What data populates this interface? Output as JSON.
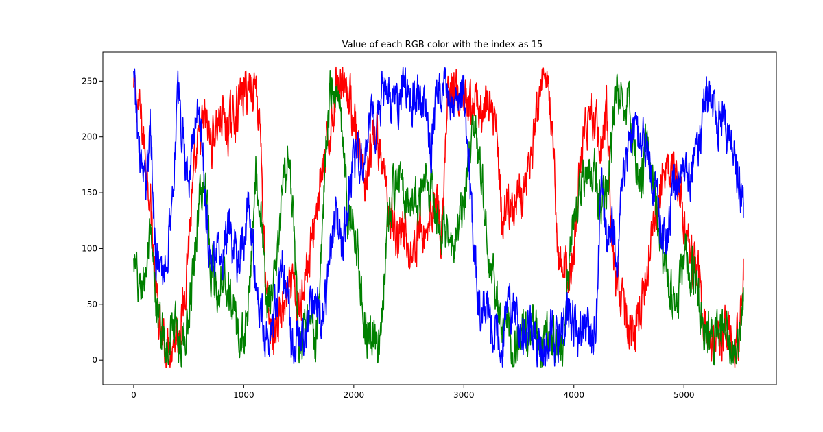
{
  "chart_data": {
    "type": "line",
    "title": "Value of each RGB color with the index as 15",
    "xlabel": "",
    "ylabel": "",
    "xlim": [
      -280,
      5840
    ],
    "ylim": [
      -22,
      276
    ],
    "x_ticks": [
      0,
      1000,
      2000,
      3000,
      4000,
      5000
    ],
    "y_ticks": [
      0,
      50,
      100,
      150,
      200,
      250
    ],
    "grid": false,
    "n_points": 5548,
    "series": [
      {
        "name": "R",
        "color": "#ff0000",
        "x": [
          0,
          50,
          100,
          150,
          200,
          250,
          300,
          350,
          400,
          450,
          500,
          550,
          600,
          650,
          700,
          750,
          800,
          850,
          900,
          950,
          1000,
          1050,
          1100,
          1150,
          1200,
          1250,
          1300,
          1350,
          1400,
          1450,
          1500,
          1550,
          1600,
          1650,
          1700,
          1750,
          1800,
          1850,
          1900,
          1950,
          2000,
          2050,
          2100,
          2150,
          2200,
          2250,
          2300,
          2350,
          2400,
          2450,
          2500,
          2550,
          2600,
          2650,
          2700,
          2750,
          2800,
          2850,
          2900,
          2950,
          3000,
          3050,
          3100,
          3150,
          3200,
          3250,
          3300,
          3350,
          3400,
          3450,
          3500,
          3550,
          3600,
          3650,
          3700,
          3750,
          3800,
          3850,
          3900,
          3950,
          4000,
          4050,
          4100,
          4150,
          4200,
          4250,
          4300,
          4350,
          4400,
          4450,
          4500,
          4550,
          4600,
          4650,
          4700,
          4750,
          4800,
          4850,
          4900,
          4950,
          5000,
          5050,
          5100,
          5150,
          5200,
          5250,
          5300,
          5350,
          5400,
          5450,
          5500,
          5540
        ],
        "y": [
          240,
          225,
          190,
          150,
          60,
          15,
          10,
          20,
          25,
          45,
          110,
          160,
          200,
          215,
          195,
          210,
          220,
          205,
          215,
          230,
          240,
          245,
          250,
          215,
          60,
          20,
          30,
          45,
          55,
          65,
          40,
          80,
          90,
          130,
          160,
          180,
          220,
          245,
          260,
          240,
          220,
          175,
          155,
          180,
          205,
          175,
          150,
          125,
          110,
          120,
          95,
          100,
          120,
          110,
          135,
          150,
          110,
          230,
          245,
          235,
          225,
          220,
          230,
          225,
          225,
          220,
          215,
          120,
          140,
          135,
          150,
          160,
          175,
          205,
          230,
          255,
          215,
          95,
          85,
          75,
          95,
          170,
          205,
          220,
          215,
          190,
          225,
          95,
          70,
          50,
          30,
          25,
          45,
          60,
          120,
          130,
          170,
          165,
          175,
          160,
          125,
          95,
          85,
          70,
          15,
          10,
          20,
          25,
          30,
          15,
          20,
          80
        ]
      },
      {
        "name": "G",
        "color": "#008000",
        "x": [
          0,
          50,
          100,
          150,
          200,
          250,
          300,
          350,
          400,
          450,
          500,
          550,
          600,
          650,
          700,
          750,
          800,
          850,
          900,
          950,
          1000,
          1050,
          1100,
          1150,
          1200,
          1250,
          1300,
          1350,
          1400,
          1450,
          1500,
          1550,
          1600,
          1650,
          1700,
          1750,
          1800,
          1850,
          1900,
          1950,
          2000,
          2050,
          2100,
          2150,
          2200,
          2250,
          2300,
          2350,
          2400,
          2450,
          2500,
          2550,
          2600,
          2650,
          2700,
          2750,
          2800,
          2850,
          2900,
          2950,
          3000,
          3050,
          3100,
          3150,
          3200,
          3250,
          3300,
          3350,
          3400,
          3450,
          3500,
          3550,
          3600,
          3650,
          3700,
          3750,
          3800,
          3850,
          3900,
          3950,
          4000,
          4050,
          4100,
          4150,
          4200,
          4250,
          4300,
          4350,
          4400,
          4450,
          4500,
          4550,
          4600,
          4650,
          4700,
          4750,
          4800,
          4850,
          4900,
          4950,
          5000,
          5050,
          5100,
          5150,
          5200,
          5250,
          5300,
          5350,
          5400,
          5450,
          5500,
          5540
        ],
        "y": [
          85,
          60,
          75,
          105,
          50,
          25,
          15,
          30,
          20,
          15,
          40,
          95,
          145,
          165,
          90,
          60,
          85,
          70,
          50,
          25,
          20,
          55,
          175,
          140,
          60,
          50,
          80,
          150,
          185,
          120,
          10,
          20,
          30,
          15,
          80,
          200,
          250,
          240,
          210,
          120,
          130,
          80,
          30,
          20,
          15,
          30,
          110,
          145,
          165,
          155,
          150,
          145,
          140,
          165,
          155,
          120,
          105,
          120,
          95,
          110,
          140,
          180,
          205,
          175,
          115,
          80,
          55,
          20,
          35,
          10,
          20,
          25,
          15,
          25,
          10,
          15,
          25,
          10,
          15,
          75,
          130,
          150,
          165,
          170,
          175,
          120,
          155,
          200,
          250,
          240,
          225,
          200,
          150,
          195,
          175,
          140,
          90,
          75,
          60,
          55,
          100,
          85,
          80,
          40,
          20,
          30,
          15,
          25,
          20,
          10,
          15,
          55
        ]
      },
      {
        "name": "B",
        "color": "#0000ff",
        "x": [
          0,
          50,
          100,
          150,
          200,
          250,
          300,
          350,
          400,
          450,
          500,
          550,
          600,
          650,
          700,
          750,
          800,
          850,
          900,
          950,
          1000,
          1050,
          1100,
          1150,
          1200,
          1250,
          1300,
          1350,
          1400,
          1450,
          1500,
          1550,
          1600,
          1650,
          1700,
          1750,
          1800,
          1850,
          1900,
          1950,
          2000,
          2050,
          2100,
          2150,
          2200,
          2250,
          2300,
          2350,
          2400,
          2450,
          2500,
          2550,
          2600,
          2650,
          2700,
          2750,
          2800,
          2850,
          2900,
          2950,
          3000,
          3050,
          3100,
          3150,
          3200,
          3250,
          3300,
          3350,
          3400,
          3450,
          3500,
          3550,
          3600,
          3650,
          3700,
          3750,
          3800,
          3850,
          3900,
          3950,
          4000,
          4050,
          4100,
          4150,
          4200,
          4250,
          4300,
          4350,
          4400,
          4450,
          4500,
          4550,
          4600,
          4650,
          4700,
          4750,
          4800,
          4850,
          4900,
          4950,
          5000,
          5050,
          5100,
          5150,
          5200,
          5250,
          5300,
          5350,
          5400,
          5450,
          5500,
          5540
        ],
        "y": [
          250,
          190,
          150,
          210,
          100,
          70,
          90,
          150,
          235,
          200,
          160,
          205,
          230,
          150,
          80,
          100,
          80,
          115,
          100,
          90,
          110,
          140,
          80,
          40,
          30,
          20,
          60,
          90,
          50,
          10,
          30,
          15,
          40,
          60,
          40,
          50,
          110,
          130,
          90,
          150,
          180,
          170,
          195,
          205,
          215,
          240,
          235,
          225,
          230,
          245,
          240,
          230,
          235,
          220,
          190,
          230,
          240,
          245,
          235,
          230,
          240,
          170,
          80,
          40,
          60,
          30,
          20,
          10,
          60,
          40,
          35,
          20,
          25,
          15,
          10,
          20,
          25,
          15,
          30,
          40,
          30,
          20,
          30,
          25,
          20,
          160,
          100,
          130,
          80,
          175,
          195,
          210,
          190,
          200,
          165,
          145,
          120,
          105,
          150,
          160,
          170,
          160,
          185,
          205,
          240,
          235,
          215,
          220,
          200,
          190,
          160,
          130
        ]
      }
    ]
  }
}
